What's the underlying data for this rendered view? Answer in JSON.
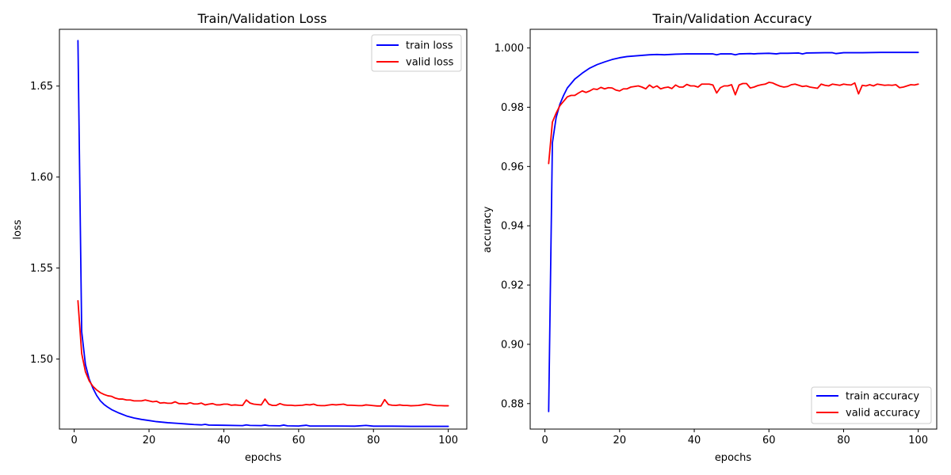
{
  "chart_data": [
    {
      "type": "line",
      "title": "Train/Validation Loss",
      "xlabel": "epochs",
      "ylabel": "loss",
      "xlim": [
        -3.95,
        104.95
      ],
      "ylim": [
        1.4615,
        1.6812
      ],
      "xticks": [
        0,
        20,
        40,
        60,
        80,
        100
      ],
      "xtick_labels": [
        "0",
        "20",
        "40",
        "60",
        "80",
        "100"
      ],
      "yticks": [
        1.5,
        1.55,
        1.6,
        1.65
      ],
      "ytick_labels": [
        "1.50",
        "1.55",
        "1.60",
        "1.65"
      ],
      "grid": false,
      "legend_position": "top-right",
      "series": [
        {
          "name": "train loss",
          "color": "#0000ff",
          "x": [
            1,
            2,
            3,
            4,
            5,
            6,
            7,
            8,
            9,
            10,
            12,
            14,
            16,
            18,
            20,
            22,
            25,
            28,
            30,
            32,
            34,
            35,
            36,
            40,
            45,
            46,
            47,
            50,
            51,
            52,
            55,
            56,
            57,
            60,
            62,
            63,
            65,
            70,
            75,
            78,
            80,
            85,
            90,
            95,
            100
          ],
          "y": [
            1.675,
            1.515,
            1.497,
            1.489,
            1.484,
            1.48,
            1.477,
            1.475,
            1.4735,
            1.4722,
            1.4703,
            1.4687,
            1.4676,
            1.4668,
            1.4662,
            1.4656,
            1.465,
            1.4646,
            1.4643,
            1.464,
            1.4638,
            1.4641,
            1.4637,
            1.4636,
            1.4634,
            1.4638,
            1.4635,
            1.4634,
            1.4637,
            1.4634,
            1.4633,
            1.4637,
            1.4633,
            1.4632,
            1.4636,
            1.4632,
            1.4632,
            1.4632,
            1.4631,
            1.4635,
            1.4631,
            1.4631,
            1.463,
            1.463,
            1.463
          ]
        },
        {
          "name": "valid loss",
          "color": "#ff0000",
          "x": [
            1,
            2,
            3,
            4,
            5,
            6,
            7,
            8,
            9,
            10,
            11,
            12,
            13,
            14,
            15,
            16,
            17,
            18,
            19,
            20,
            21,
            22,
            23,
            24,
            25,
            26,
            27,
            28,
            29,
            30,
            31,
            32,
            33,
            34,
            35,
            36,
            37,
            38,
            39,
            40,
            41,
            42,
            43,
            44,
            45,
            46,
            47,
            48,
            49,
            50,
            51,
            52,
            53,
            54,
            55,
            56,
            57,
            58,
            59,
            60,
            61,
            62,
            63,
            64,
            65,
            66,
            67,
            68,
            69,
            70,
            71,
            72,
            73,
            74,
            75,
            76,
            77,
            78,
            79,
            80,
            81,
            82,
            83,
            84,
            85,
            86,
            87,
            88,
            89,
            90,
            91,
            92,
            93,
            94,
            95,
            96,
            97,
            98,
            99,
            100
          ],
          "y": [
            1.532,
            1.503,
            1.493,
            1.488,
            1.485,
            1.483,
            1.4815,
            1.4805,
            1.4798,
            1.4795,
            1.4785,
            1.478,
            1.478,
            1.4775,
            1.4775,
            1.477,
            1.477,
            1.477,
            1.4775,
            1.477,
            1.4765,
            1.4768,
            1.4758,
            1.476,
            1.4757,
            1.4757,
            1.4765,
            1.4755,
            1.4755,
            1.4753,
            1.476,
            1.4753,
            1.4753,
            1.4758,
            1.4748,
            1.4752,
            1.4755,
            1.4748,
            1.4748,
            1.4752,
            1.4752,
            1.4746,
            1.4748,
            1.4746,
            1.4745,
            1.4775,
            1.4758,
            1.4752,
            1.475,
            1.4748,
            1.478,
            1.4752,
            1.4745,
            1.4745,
            1.4755,
            1.4748,
            1.4746,
            1.4746,
            1.4744,
            1.4745,
            1.4746,
            1.475,
            1.4748,
            1.4752,
            1.4745,
            1.4744,
            1.4744,
            1.4747,
            1.475,
            1.4748,
            1.475,
            1.4752,
            1.4746,
            1.4746,
            1.4745,
            1.4744,
            1.4744,
            1.4748,
            1.4746,
            1.4744,
            1.4742,
            1.4742,
            1.4777,
            1.475,
            1.4746,
            1.4745,
            1.4748,
            1.4745,
            1.4745,
            1.4743,
            1.4744,
            1.4745,
            1.4748,
            1.4752,
            1.475,
            1.4746,
            1.4744,
            1.4744,
            1.4743,
            1.4743
          ]
        }
      ]
    },
    {
      "type": "line",
      "title": "Train/Validation Accuracy",
      "xlabel": "epochs",
      "ylabel": "accuracy",
      "xlim": [
        -3.95,
        104.95
      ],
      "ylim": [
        0.8714,
        1.0063
      ],
      "xticks": [
        0,
        20,
        40,
        60,
        80,
        100
      ],
      "xtick_labels": [
        "0",
        "20",
        "40",
        "60",
        "80",
        "100"
      ],
      "yticks": [
        0.88,
        0.9,
        0.92,
        0.94,
        0.96,
        0.98,
        1.0
      ],
      "ytick_labels": [
        "0.88",
        "0.90",
        "0.92",
        "0.94",
        "0.96",
        "0.98",
        "1.000"
      ],
      "grid": false,
      "legend_position": "bottom-right",
      "series": [
        {
          "name": "train accuracy",
          "color": "#0000ff",
          "x": [
            1,
            2,
            3,
            4,
            5,
            6,
            7,
            8,
            9,
            10,
            12,
            14,
            16,
            18,
            20,
            22,
            25,
            28,
            30,
            32,
            35,
            38,
            40,
            45,
            46,
            47,
            50,
            51,
            52,
            55,
            56,
            57,
            60,
            62,
            63,
            65,
            68,
            69,
            70,
            75,
            77,
            78,
            80,
            85,
            90,
            95,
            100
          ],
          "y": [
            0.8773,
            0.968,
            0.9765,
            0.981,
            0.984,
            0.9865,
            0.988,
            0.9895,
            0.9905,
            0.9915,
            0.9932,
            0.9944,
            0.9953,
            0.9961,
            0.9967,
            0.9971,
            0.9974,
            0.9977,
            0.9978,
            0.9977,
            0.9979,
            0.998,
            0.998,
            0.998,
            0.9977,
            0.998,
            0.998,
            0.9977,
            0.998,
            0.9981,
            0.998,
            0.9981,
            0.9982,
            0.998,
            0.9982,
            0.9982,
            0.9983,
            0.998,
            0.9983,
            0.9984,
            0.9984,
            0.9981,
            0.9984,
            0.9984,
            0.9985,
            0.9985,
            0.9985
          ]
        },
        {
          "name": "valid accuracy",
          "color": "#ff0000",
          "x": [
            1,
            2,
            3,
            4,
            5,
            6,
            7,
            8,
            9,
            10,
            11,
            12,
            13,
            14,
            15,
            16,
            17,
            18,
            19,
            20,
            21,
            22,
            23,
            24,
            25,
            26,
            27,
            28,
            29,
            30,
            31,
            32,
            33,
            34,
            35,
            36,
            37,
            38,
            39,
            40,
            41,
            42,
            43,
            44,
            45,
            46,
            47,
            48,
            49,
            50,
            51,
            52,
            53,
            54,
            55,
            56,
            57,
            58,
            59,
            60,
            61,
            62,
            63,
            64,
            65,
            66,
            67,
            68,
            69,
            70,
            71,
            72,
            73,
            74,
            75,
            76,
            77,
            78,
            79,
            80,
            81,
            82,
            83,
            84,
            85,
            86,
            87,
            88,
            89,
            90,
            91,
            92,
            93,
            94,
            95,
            96,
            97,
            98,
            99,
            100
          ],
          "y": [
            0.961,
            0.975,
            0.978,
            0.9805,
            0.982,
            0.9835,
            0.984,
            0.984,
            0.9848,
            0.9855,
            0.985,
            0.9855,
            0.9862,
            0.986,
            0.9867,
            0.9862,
            0.9866,
            0.9865,
            0.9858,
            0.9855,
            0.9862,
            0.9862,
            0.9868,
            0.987,
            0.9872,
            0.9868,
            0.9862,
            0.9875,
            0.9866,
            0.9872,
            0.9862,
            0.9866,
            0.9868,
            0.9863,
            0.9875,
            0.9868,
            0.9868,
            0.9877,
            0.9872,
            0.9872,
            0.9868,
            0.9878,
            0.9878,
            0.9878,
            0.9875,
            0.9848,
            0.9866,
            0.9872,
            0.9872,
            0.9876,
            0.9842,
            0.9875,
            0.988,
            0.988,
            0.9865,
            0.9868,
            0.9873,
            0.9876,
            0.9878,
            0.9884,
            0.9882,
            0.9876,
            0.9871,
            0.9868,
            0.987,
            0.9876,
            0.9878,
            0.9874,
            0.987,
            0.9872,
            0.9868,
            0.9866,
            0.9864,
            0.9878,
            0.9874,
            0.9872,
            0.9878,
            0.9876,
            0.9874,
            0.9878,
            0.9876,
            0.9875,
            0.9882,
            0.9845,
            0.9874,
            0.9872,
            0.9876,
            0.9872,
            0.9878,
            0.9876,
            0.9874,
            0.9875,
            0.9874,
            0.9876,
            0.9866,
            0.9868,
            0.9872,
            0.9876,
            0.9875,
            0.9878
          ]
        }
      ]
    }
  ]
}
